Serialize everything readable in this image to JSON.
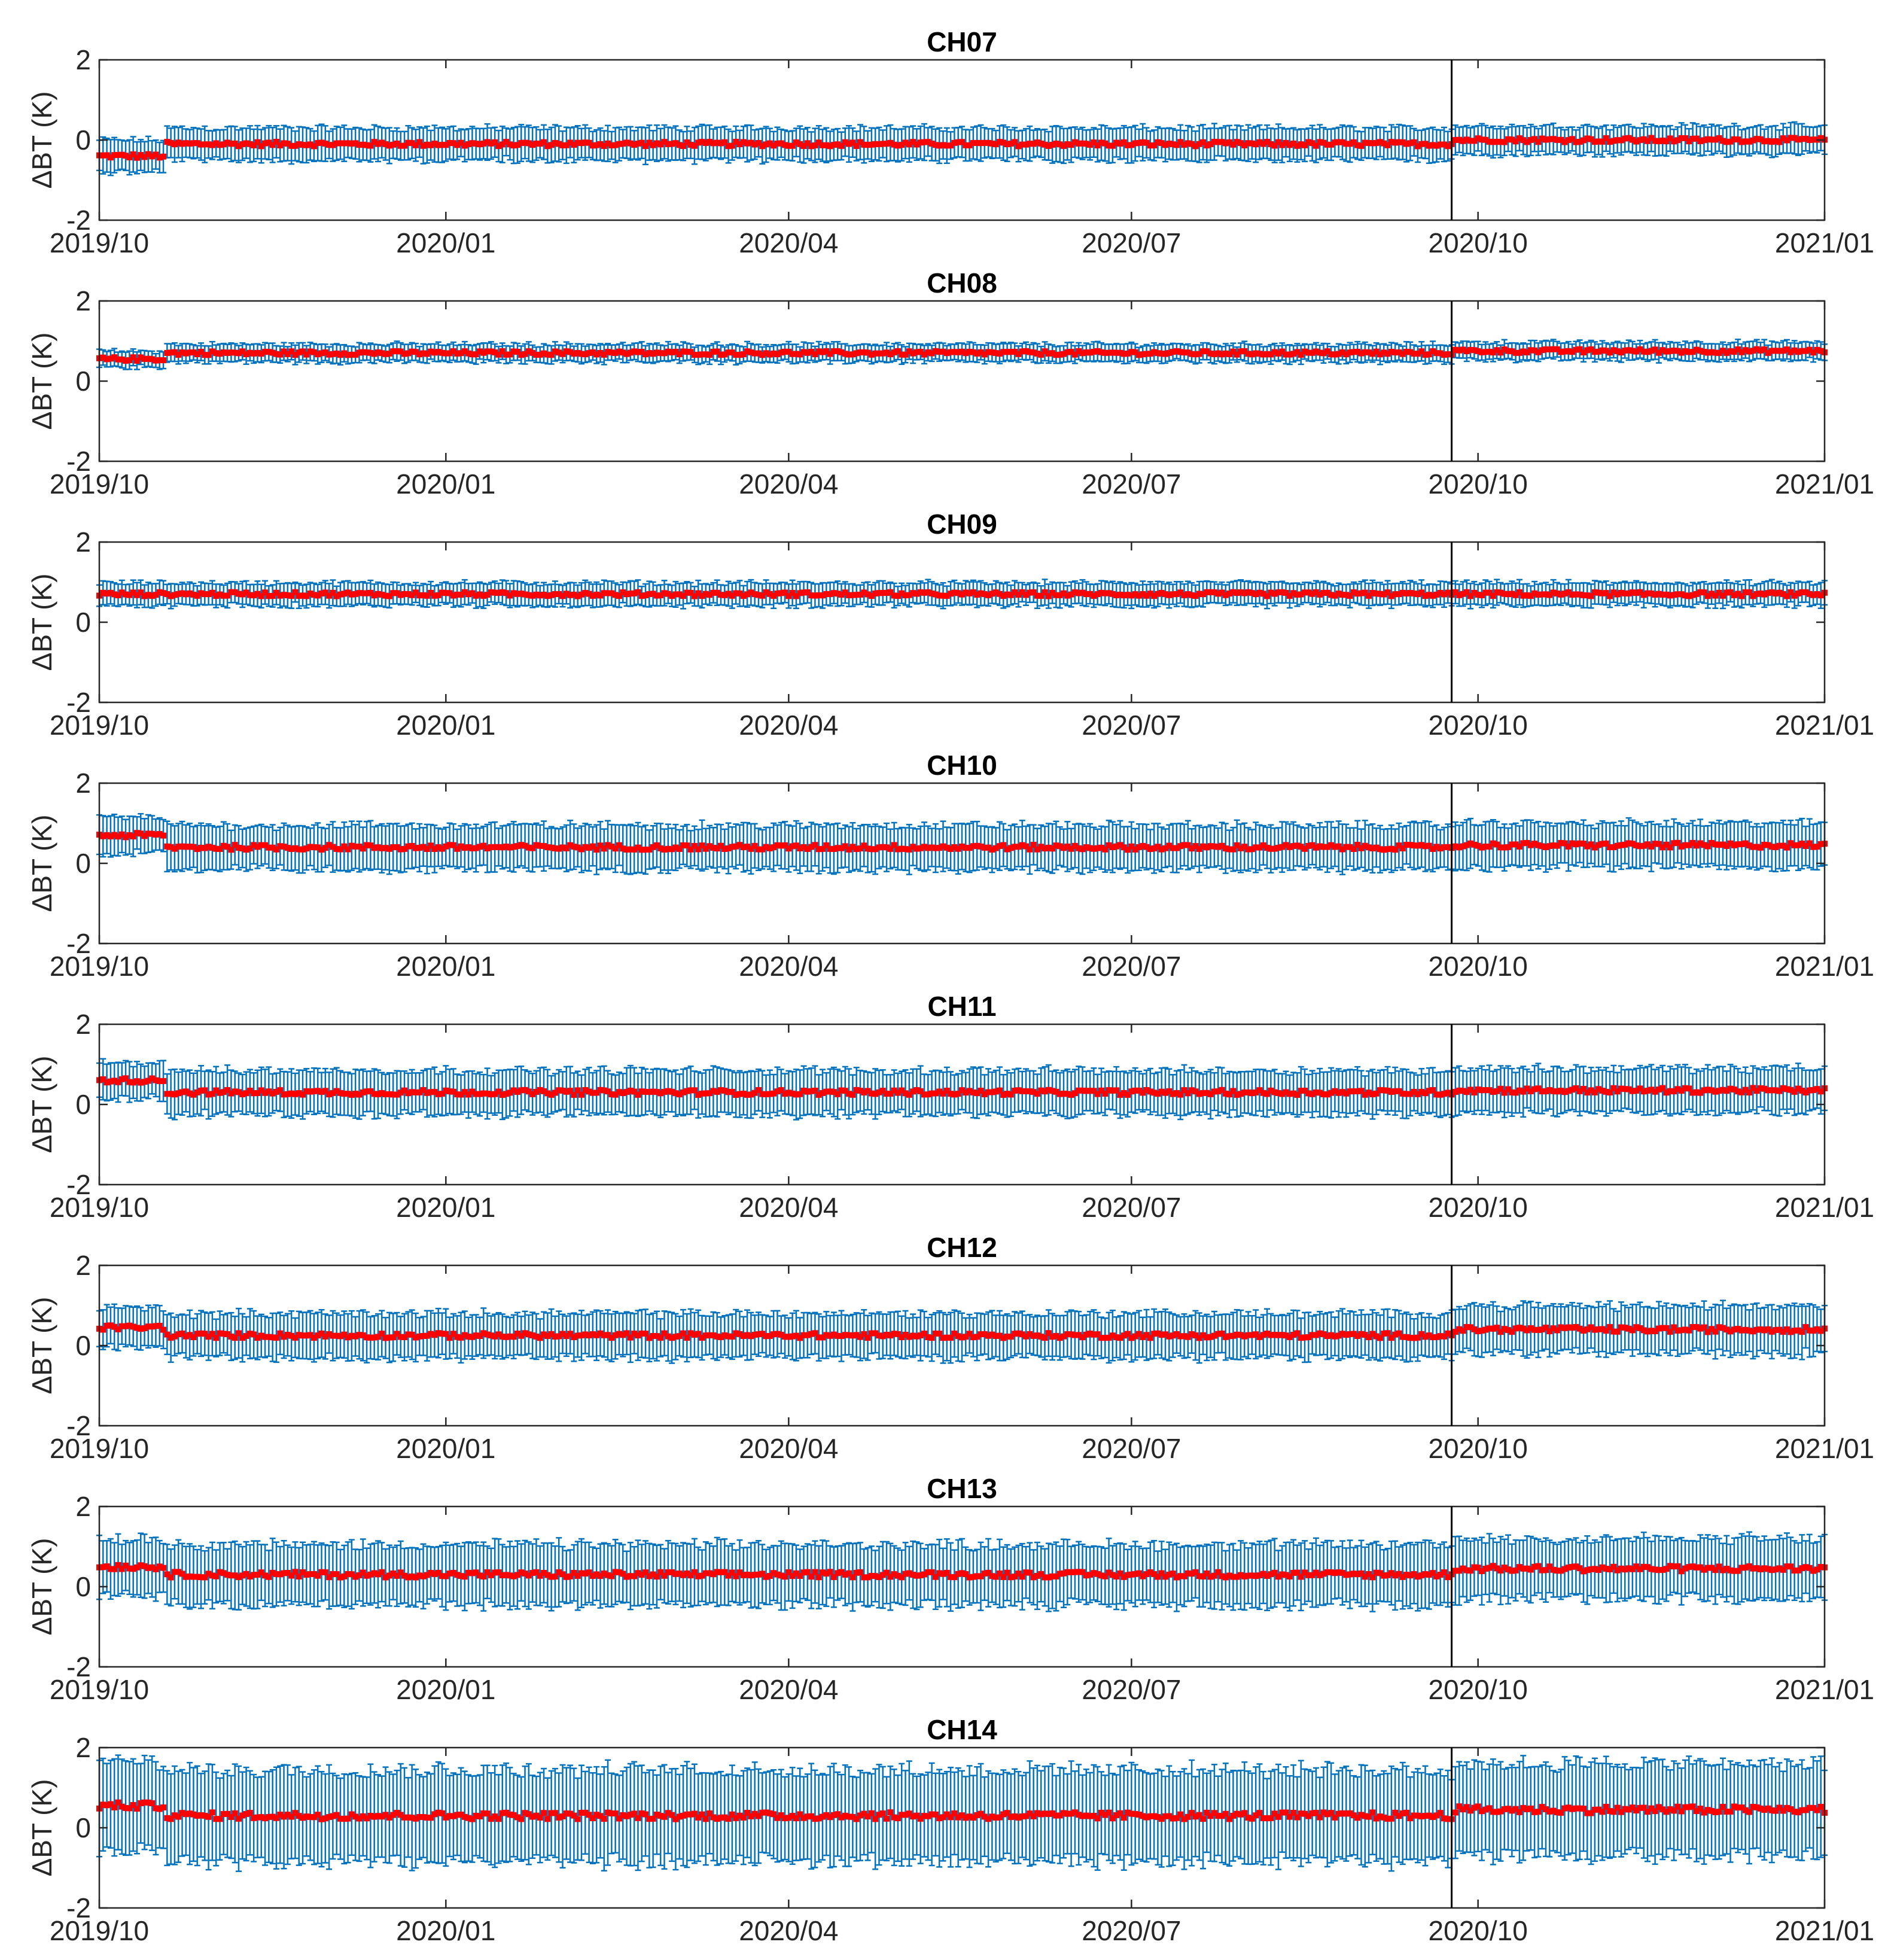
{
  "figure": {
    "colors": {
      "errorbar": "#0072BD",
      "mean": "#FF0000",
      "axes": "#262626",
      "event_line": "#000000"
    },
    "event_date": "2020-09-24"
  },
  "chart_data": [
    {
      "type": "scatter",
      "title": "CH07",
      "ylabel": "ΔBT (K)",
      "ylim": [
        -2,
        2
      ],
      "yticks": [
        "2",
        "0",
        "-2"
      ],
      "xlim": [
        "2019-10-01",
        "2021-01-01"
      ],
      "xticks": [
        "2019/10",
        "2020/01",
        "2020/04",
        "2020/07",
        "2020/10",
        "2021/01"
      ],
      "series": [
        {
          "segments": [
            {
              "start": "2019-10-01",
              "end": "2019-10-18",
              "mean": -0.4,
              "std": 0.4
            },
            {
              "start": "2019-10-19",
              "end": "2020-09-24",
              "mean": -0.1,
              "std": 0.4
            },
            {
              "start": "2020-09-25",
              "end": "2021-01-01",
              "mean": 0.0,
              "std": 0.35
            }
          ]
        }
      ]
    },
    {
      "type": "scatter",
      "title": "CH08",
      "ylabel": "ΔBT (K)",
      "ylim": [
        -2,
        2
      ],
      "yticks": [
        "2",
        "0",
        "-2"
      ],
      "xlim": [
        "2019-10-01",
        "2021-01-01"
      ],
      "xticks": [
        "2019/10",
        "2020/01",
        "2020/04",
        "2020/07",
        "2020/10",
        "2021/01"
      ],
      "series": [
        {
          "segments": [
            {
              "start": "2019-10-01",
              "end": "2019-10-18",
              "mean": 0.55,
              "std": 0.2
            },
            {
              "start": "2019-10-19",
              "end": "2020-09-24",
              "mean": 0.7,
              "std": 0.22
            },
            {
              "start": "2020-09-25",
              "end": "2021-01-01",
              "mean": 0.75,
              "std": 0.22
            }
          ]
        }
      ]
    },
    {
      "type": "scatter",
      "title": "CH09",
      "ylabel": "ΔBT (K)",
      "ylim": [
        -2,
        2
      ],
      "yticks": [
        "2",
        "0",
        "-2"
      ],
      "xlim": [
        "2019-10-01",
        "2021-01-01"
      ],
      "xticks": [
        "2019/10",
        "2020/01",
        "2020/04",
        "2020/07",
        "2020/10",
        "2021/01"
      ],
      "series": [
        {
          "segments": [
            {
              "start": "2019-10-01",
              "end": "2020-09-24",
              "mean": 0.7,
              "std": 0.28
            },
            {
              "start": "2020-09-25",
              "end": "2021-01-01",
              "mean": 0.7,
              "std": 0.28
            }
          ]
        }
      ]
    },
    {
      "type": "scatter",
      "title": "CH10",
      "ylabel": "ΔBT (K)",
      "ylim": [
        -2,
        2
      ],
      "yticks": [
        "2",
        "0",
        "-2"
      ],
      "xlim": [
        "2019-10-01",
        "2021-01-01"
      ],
      "xticks": [
        "2019/10",
        "2020/01",
        "2020/04",
        "2020/07",
        "2020/10",
        "2021/01"
      ],
      "series": [
        {
          "segments": [
            {
              "start": "2019-10-01",
              "end": "2019-10-18",
              "mean": 0.7,
              "std": 0.45
            },
            {
              "start": "2019-10-19",
              "end": "2020-09-24",
              "mean": 0.4,
              "std": 0.55
            },
            {
              "start": "2020-09-25",
              "end": "2021-01-01",
              "mean": 0.45,
              "std": 0.55
            }
          ]
        }
      ]
    },
    {
      "type": "scatter",
      "title": "CH11",
      "ylabel": "ΔBT (K)",
      "ylim": [
        -2,
        2
      ],
      "yticks": [
        "2",
        "0",
        "-2"
      ],
      "xlim": [
        "2019-10-01",
        "2021-01-01"
      ],
      "xticks": [
        "2019/10",
        "2020/01",
        "2020/04",
        "2020/07",
        "2020/10",
        "2021/01"
      ],
      "series": [
        {
          "segments": [
            {
              "start": "2019-10-01",
              "end": "2019-10-18",
              "mean": 0.6,
              "std": 0.45
            },
            {
              "start": "2019-10-19",
              "end": "2020-09-24",
              "mean": 0.3,
              "std": 0.55
            },
            {
              "start": "2020-09-25",
              "end": "2021-01-01",
              "mean": 0.35,
              "std": 0.55
            }
          ]
        }
      ]
    },
    {
      "type": "scatter",
      "title": "CH12",
      "ylabel": "ΔBT (K)",
      "ylim": [
        -2,
        2
      ],
      "yticks": [
        "2",
        "0",
        "-2"
      ],
      "xlim": [
        "2019-10-01",
        "2021-01-01"
      ],
      "xticks": [
        "2019/10",
        "2020/01",
        "2020/04",
        "2020/07",
        "2020/10",
        "2021/01"
      ],
      "series": [
        {
          "segments": [
            {
              "start": "2019-10-01",
              "end": "2019-10-18",
              "mean": 0.45,
              "std": 0.5
            },
            {
              "start": "2019-10-19",
              "end": "2020-09-24",
              "mean": 0.25,
              "std": 0.55
            },
            {
              "start": "2020-09-25",
              "end": "2021-01-01",
              "mean": 0.4,
              "std": 0.6
            }
          ]
        }
      ]
    },
    {
      "type": "scatter",
      "title": "CH13",
      "ylabel": "ΔBT (K)",
      "ylim": [
        -2,
        2
      ],
      "yticks": [
        "2",
        "0",
        "-2"
      ],
      "xlim": [
        "2019-10-01",
        "2021-01-01"
      ],
      "xticks": [
        "2019/10",
        "2020/01",
        "2020/04",
        "2020/07",
        "2020/10",
        "2021/01"
      ],
      "series": [
        {
          "segments": [
            {
              "start": "2019-10-01",
              "end": "2019-10-18",
              "mean": 0.5,
              "std": 0.7
            },
            {
              "start": "2019-10-19",
              "end": "2020-09-24",
              "mean": 0.3,
              "std": 0.75
            },
            {
              "start": "2020-09-25",
              "end": "2021-01-01",
              "mean": 0.45,
              "std": 0.75
            }
          ]
        }
      ]
    },
    {
      "type": "scatter",
      "title": "CH14",
      "ylabel": "ΔBT (K)",
      "ylim": [
        -2,
        2
      ],
      "yticks": [
        "2",
        "0",
        "-2"
      ],
      "xlim": [
        "2019-10-01",
        "2021-01-01"
      ],
      "xticks": [
        "2019/10",
        "2020/01",
        "2020/04",
        "2020/07",
        "2020/10",
        "2021/01"
      ],
      "series": [
        {
          "segments": [
            {
              "start": "2019-10-01",
              "end": "2019-10-18",
              "mean": 0.55,
              "std": 1.1
            },
            {
              "start": "2019-10-19",
              "end": "2020-09-24",
              "mean": 0.3,
              "std": 1.15
            },
            {
              "start": "2020-09-25",
              "end": "2021-01-01",
              "mean": 0.45,
              "std": 1.15
            }
          ]
        }
      ]
    }
  ]
}
